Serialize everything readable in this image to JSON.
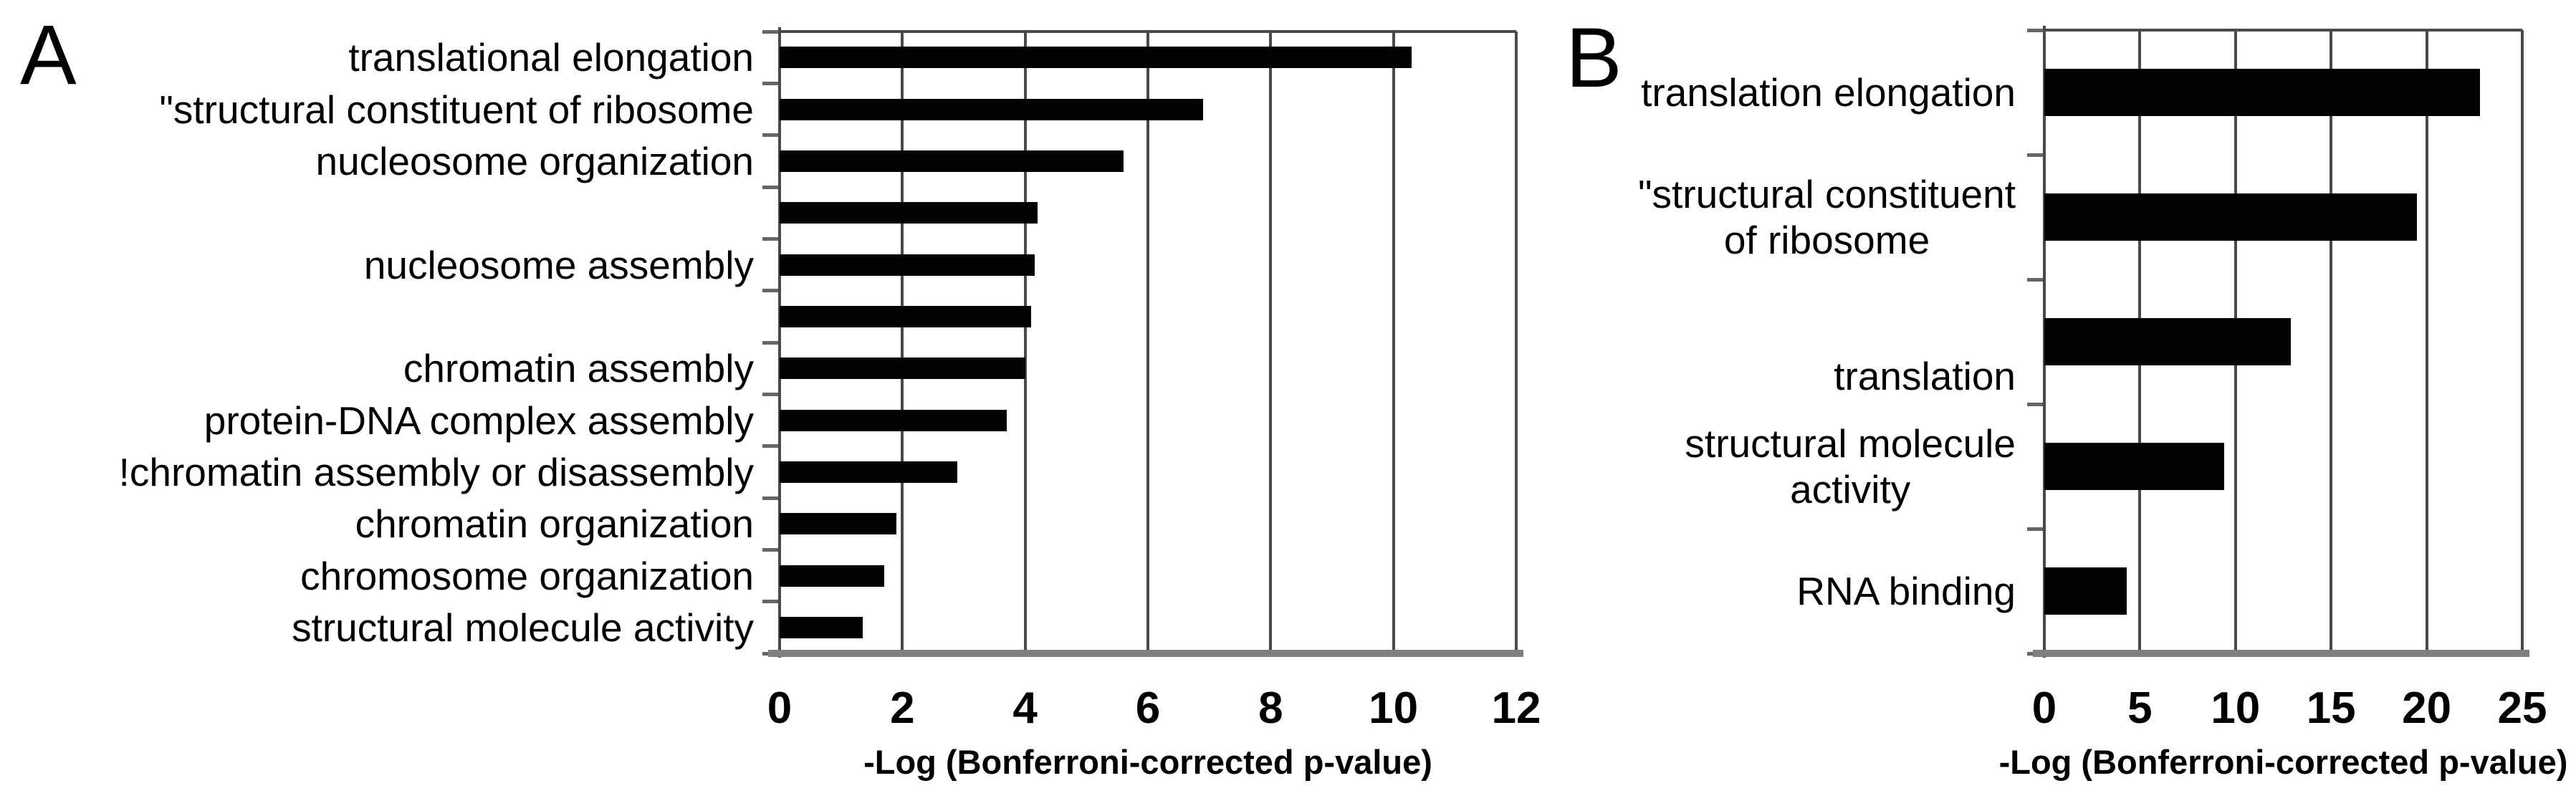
{
  "figure": {
    "background": "#ffffff",
    "description_colors": {
      "bar": "#030303",
      "gridline": "#4a4a4a",
      "bottom_axis": "#7f7f7f",
      "text": "#000000"
    }
  },
  "chart_data": [
    {
      "type": "bar",
      "orientation": "horizontal",
      "panel_letter": "A",
      "title": "",
      "xlabel": "-Log (Bonferroni-corrected p-value)",
      "ylabel": "",
      "xlim": [
        0,
        12
      ],
      "xticks": [
        0,
        2,
        4,
        6,
        8,
        10,
        12
      ],
      "grid": true,
      "bar_color": "#030303",
      "categories": [
        "translational elongation",
        "\"structural constituent of ribosome",
        "nucleosome organization",
        "",
        "nucleosome assembly",
        "",
        "chromatin assembly",
        "protein-DNA complex assembly",
        "!chromatin assembly or disassembly",
        "chromatin organization",
        "chromosome organization",
        "structural molecule activity"
      ],
      "category_lines": [
        [
          "translational elongation"
        ],
        [
          "\"structural constituent of ribosome"
        ],
        [
          "nucleosome organization"
        ],
        [],
        [
          "nucleosome assembly"
        ],
        [],
        [
          "chromatin assembly"
        ],
        [
          "protein-DNA complex assembly"
        ],
        [
          "!chromatin assembly or disassembly"
        ],
        [
          "chromatin organization"
        ],
        [
          "chromosome organization"
        ],
        [
          "structural molecule activity"
        ]
      ],
      "values": [
        10.3,
        6.9,
        5.6,
        4.2,
        4.15,
        4.1,
        4.0,
        3.7,
        2.9,
        1.9,
        1.7,
        1.35
      ]
    },
    {
      "type": "bar",
      "orientation": "horizontal",
      "panel_letter": "B",
      "title": "",
      "xlabel": "-Log (Bonferroni-corrected p-value)",
      "ylabel": "",
      "xlim": [
        0,
        25
      ],
      "xticks": [
        0,
        5,
        10,
        15,
        20,
        25
      ],
      "grid": true,
      "bar_color": "#030303",
      "categories": [
        "translation elongation",
        "\"structural constituent of ribosome",
        "translation",
        "structural molecule activity",
        "RNA binding"
      ],
      "category_lines": [
        [
          "translation elongation"
        ],
        [
          "\"structural constituent",
          "of ribosome"
        ],
        [
          "translation"
        ],
        [
          "structural molecule",
          "activity"
        ],
        [
          "RNA binding"
        ]
      ],
      "values": [
        22.8,
        19.5,
        12.9,
        9.4,
        4.3
      ]
    }
  ]
}
